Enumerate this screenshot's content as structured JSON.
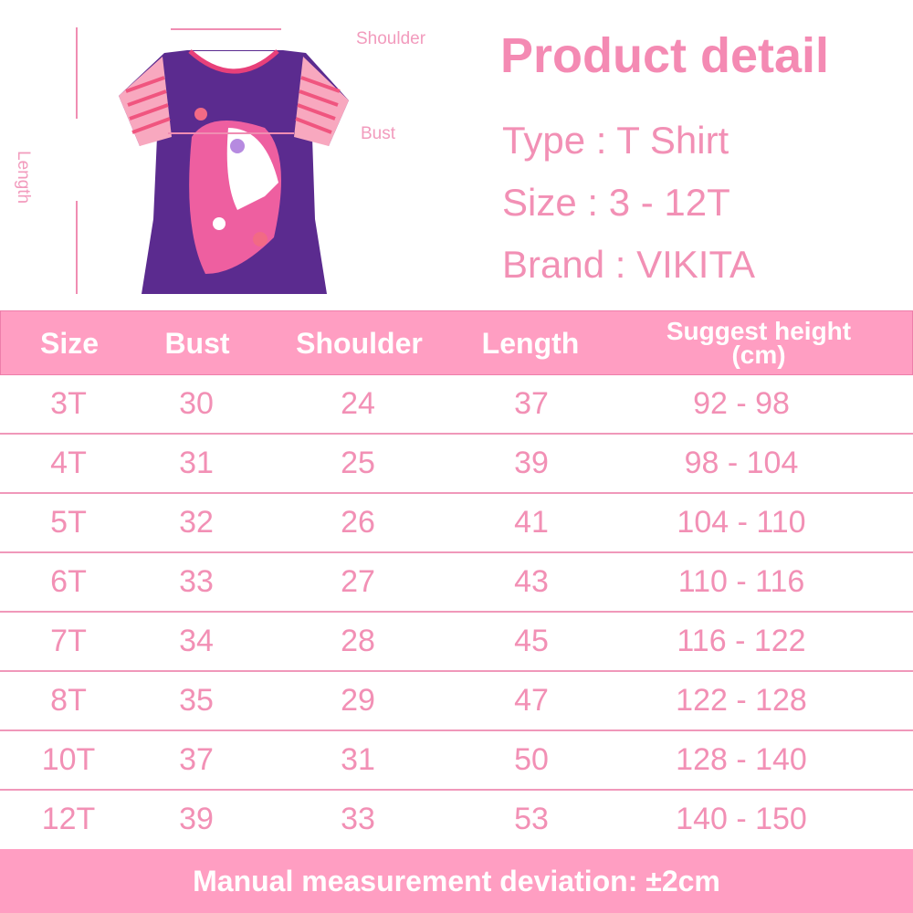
{
  "product": {
    "title": "Product detail",
    "type": "Type : T Shirt",
    "size": "Size : 3 - 12T",
    "brand": "Brand : VIKITA"
  },
  "diagram": {
    "shoulder_label": "Shoulder",
    "bust_label": "Bust",
    "length_label": "Length"
  },
  "colors": {
    "accent": "#ff9ec2",
    "text": "#f290b5",
    "shirt": "#5a2a8c"
  },
  "table": {
    "headers": [
      "Size",
      "Bust",
      "Shoulder",
      "Length",
      "Suggest height (cm)"
    ],
    "rows": [
      [
        "3T",
        "30",
        "24",
        "37",
        "92 - 98"
      ],
      [
        "4T",
        "31",
        "25",
        "39",
        "98 - 104"
      ],
      [
        "5T",
        "32",
        "26",
        "41",
        "104 - 110"
      ],
      [
        "6T",
        "33",
        "27",
        "43",
        "110 - 116"
      ],
      [
        "7T",
        "34",
        "28",
        "45",
        "116 - 122"
      ],
      [
        "8T",
        "35",
        "29",
        "47",
        "122 - 128"
      ],
      [
        "10T",
        "37",
        "31",
        "50",
        "128 - 140"
      ],
      [
        "12T",
        "39",
        "33",
        "53",
        "140 - 150"
      ]
    ]
  },
  "footer": {
    "note": "Manual measurement deviation: ±2cm"
  }
}
